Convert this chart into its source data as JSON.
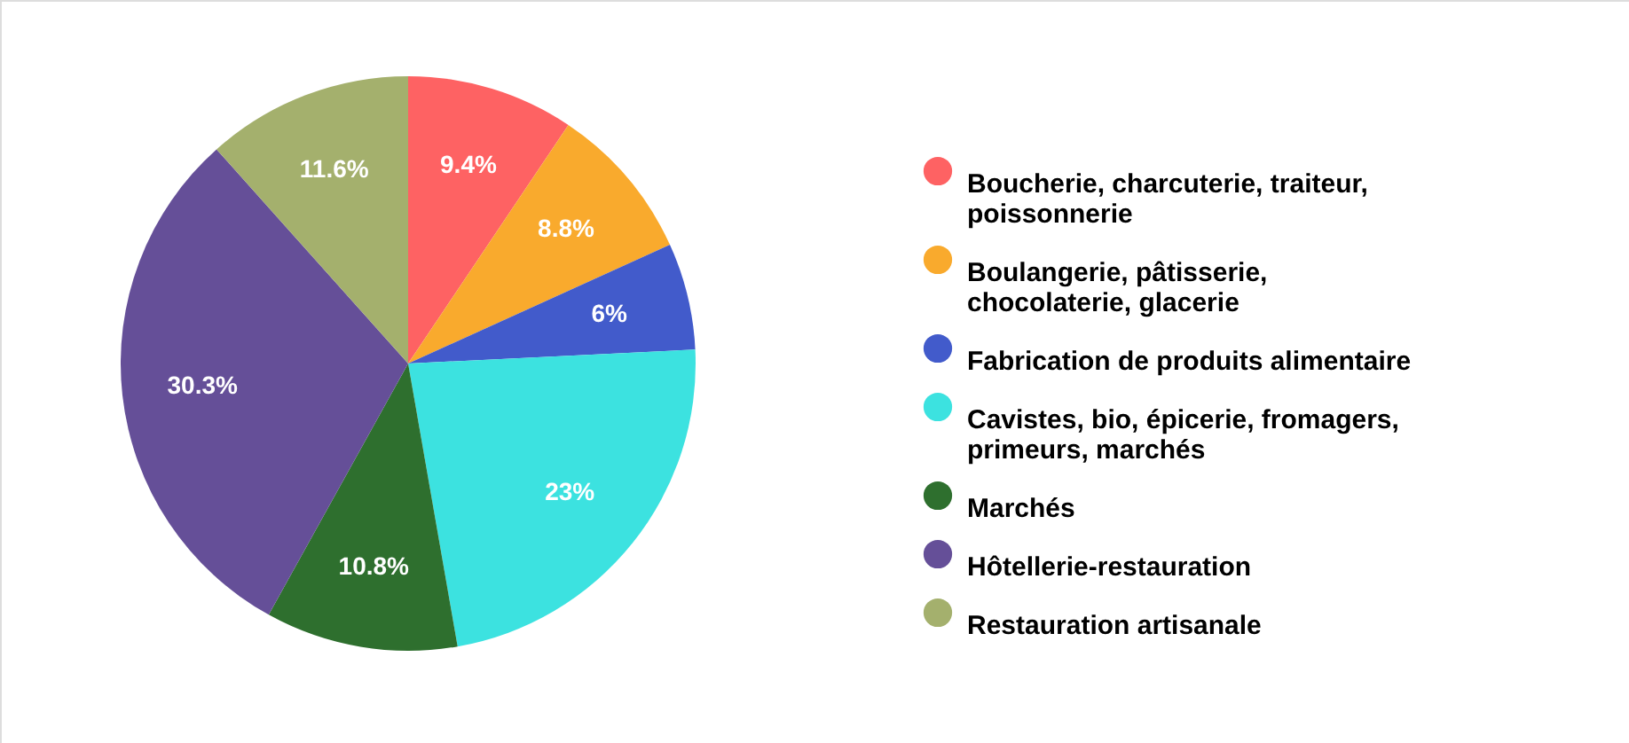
{
  "chart_data": {
    "type": "pie",
    "categories": [
      "Boucherie, charcuterie, traiteur, poissonnerie",
      "Boulangerie, pâtisserie, chocolaterie, glacerie",
      "Fabrication de produits alimentaire",
      "Cavistes, bio, épicerie, fromagers, primeurs, marchés",
      "Marchés",
      "Hôtellerie-restauration",
      "Restauration artisanale"
    ],
    "values": [
      9.4,
      8.8,
      6,
      23,
      10.8,
      30.3,
      11.6
    ],
    "colors": [
      "#fe6263",
      "#f9aa2d",
      "#425bcb",
      "#3ce2e0",
      "#2e6f2e",
      "#654f98",
      "#a4b06d"
    ],
    "value_labels": [
      "9.4%",
      "8.8%",
      "6%",
      "23%",
      "10.8%",
      "30.3%",
      "11.6%"
    ],
    "legend": "right"
  }
}
